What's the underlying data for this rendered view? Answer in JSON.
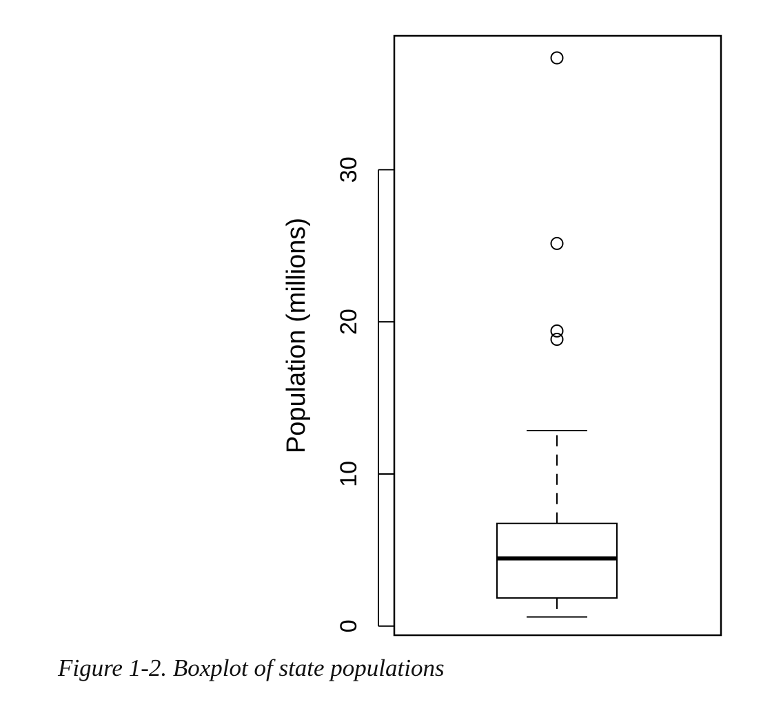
{
  "chart_data": {
    "type": "boxplot",
    "xlabel": "",
    "ylabel": "Population (millions)",
    "ylim": [
      -0.6,
      38.8
    ],
    "y_ticks": [
      0,
      10,
      20,
      30
    ],
    "grid": false,
    "series": [
      {
        "min": 0.6,
        "q1": 1.85,
        "median": 4.45,
        "q3": 6.75,
        "max": 12.85,
        "outliers": [
          18.85,
          19.4,
          25.15,
          37.35
        ]
      }
    ]
  },
  "figure": {
    "caption": "Figure 1-2. Boxplot of state populations"
  }
}
